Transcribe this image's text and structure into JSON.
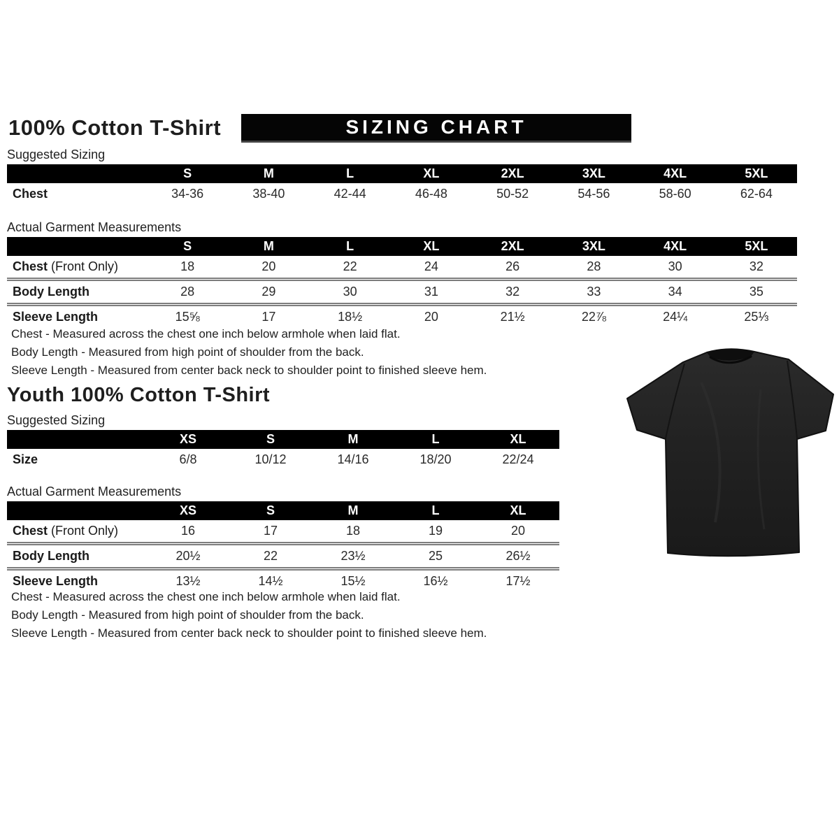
{
  "banner_label": "SIZING CHART",
  "adult": {
    "title": "100% Cotton T-Shirt",
    "suggested_label": "Suggested Sizing",
    "actual_label": "Actual Garment Measurements",
    "suggested": {
      "columns": [
        "S",
        "M",
        "L",
        "XL",
        "2XL",
        "3XL",
        "4XL",
        "5XL"
      ],
      "rows": [
        {
          "label": "Chest",
          "suffix": "",
          "values": [
            "34-36",
            "38-40",
            "42-44",
            "46-48",
            "50-52",
            "54-56",
            "58-60",
            "62-64"
          ]
        }
      ]
    },
    "actual": {
      "columns": [
        "S",
        "M",
        "L",
        "XL",
        "2XL",
        "3XL",
        "4XL",
        "5XL"
      ],
      "rows": [
        {
          "label": "Chest",
          "suffix": " (Front Only)",
          "values": [
            "18",
            "20",
            "22",
            "24",
            "26",
            "28",
            "30",
            "32"
          ]
        },
        {
          "label": "Body Length",
          "suffix": "",
          "values": [
            "28",
            "29",
            "30",
            "31",
            "32",
            "33",
            "34",
            "35"
          ]
        },
        {
          "label": "Sleeve Length",
          "suffix": "",
          "values": [
            "15⅝",
            "17",
            "18½",
            "20",
            "21½",
            "22⅞",
            "24¼",
            "25⅓"
          ]
        }
      ]
    },
    "notes": [
      "Chest - Measured across the chest one inch below armhole when laid flat.",
      "Body Length - Measured from high point of shoulder from the back.",
      "Sleeve Length - Measured from center back neck to shoulder point to finished sleeve hem."
    ]
  },
  "youth": {
    "title": "Youth 100% Cotton T-Shirt",
    "suggested_label": "Suggested Sizing",
    "actual_label": "Actual Garment Measurements",
    "suggested": {
      "columns": [
        "XS",
        "S",
        "M",
        "L",
        "XL"
      ],
      "rows": [
        {
          "label": "Size",
          "suffix": "",
          "values": [
            "6/8",
            "10/12",
            "14/16",
            "18/20",
            "22/24"
          ]
        }
      ]
    },
    "actual": {
      "columns": [
        "XS",
        "S",
        "M",
        "L",
        "XL"
      ],
      "rows": [
        {
          "label": "Chest",
          "suffix": " (Front Only)",
          "values": [
            "16",
            "17",
            "18",
            "19",
            "20"
          ]
        },
        {
          "label": "Body Length",
          "suffix": "",
          "values": [
            "20½",
            "22",
            "23½",
            "25",
            "26½"
          ]
        },
        {
          "label": "Sleeve Length",
          "suffix": "",
          "values": [
            "13½",
            "14½",
            "15½",
            "16½",
            "17½"
          ]
        }
      ]
    },
    "notes": [
      "Chest - Measured across the chest one inch below armhole when laid flat.",
      "Body Length - Measured from high point of shoulder from the back.",
      "Sleeve Length - Measured from center back neck to shoulder point to finished sleeve hem."
    ]
  },
  "tshirt": {
    "description": "black short-sleeve crew-neck t-shirt product photo",
    "color": "#242424"
  },
  "colors": {
    "header_bar": "#000000",
    "banner_bg": "#050505",
    "separator": "#7d7d7d",
    "text": "#1e1e1e"
  }
}
